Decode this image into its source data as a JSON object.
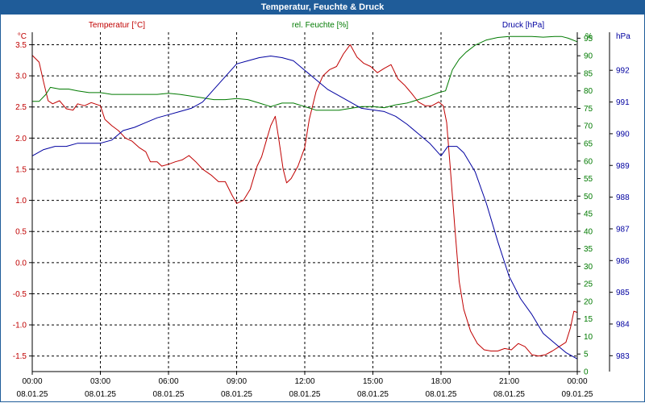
{
  "window": {
    "title": "Temperatur, Feuchte & Druck"
  },
  "chart_data": {
    "type": "line",
    "title": "Temperatur, Feuchte & Druck",
    "colors": {
      "temperature": "#c00000",
      "humidity": "#007a00",
      "pressure": "#0000a0",
      "grid": "#000000"
    },
    "x": {
      "range_hours": [
        0,
        24
      ],
      "ticks": [
        {
          "hour": 0,
          "time": "00:00",
          "date": "08.01.25"
        },
        {
          "hour": 3,
          "time": "03:00",
          "date": "08.01.25"
        },
        {
          "hour": 6,
          "time": "06:00",
          "date": "08.01.25"
        },
        {
          "hour": 9,
          "time": "09:00",
          "date": "08.01.25"
        },
        {
          "hour": 12,
          "time": "12:00",
          "date": "08.01.25"
        },
        {
          "hour": 15,
          "time": "15:00",
          "date": "08.01.25"
        },
        {
          "hour": 18,
          "time": "18:00",
          "date": "08.01.25"
        },
        {
          "hour": 21,
          "time": "21:00",
          "date": "08.01.25"
        },
        {
          "hour": 24,
          "time": "00:00",
          "date": "09.01.25"
        }
      ]
    },
    "axes": {
      "temperature": {
        "unit": "°C",
        "legend": "Temperatur [°C]",
        "range": [
          -1.75,
          3.7
        ],
        "ticks": [
          3.5,
          3.0,
          2.5,
          2.0,
          1.5,
          1.0,
          0.5,
          0.0,
          -0.5,
          -1.0,
          -1.5
        ],
        "tick_labels": [
          "3.5",
          "3.0",
          "2.5",
          "2.0",
          "1.5",
          "1.0",
          "0.5",
          "0.0",
          "-0.5",
          "-1.0",
          "-1.5"
        ]
      },
      "humidity": {
        "unit": "%",
        "legend": "rel. Feuchte [%]",
        "range": [
          0,
          96.7
        ],
        "ticks": [
          95,
          90,
          85,
          80,
          75,
          70,
          65,
          60,
          55,
          50,
          45,
          40,
          35,
          30,
          25,
          20,
          15,
          10,
          5,
          0
        ],
        "tick_labels": [
          "95",
          "90",
          "85",
          "80",
          "75",
          "70",
          "65",
          "60",
          "55",
          "50",
          "45",
          "40",
          "35",
          "30",
          "25",
          "20",
          "15",
          "10",
          "5",
          "0"
        ]
      },
      "pressure": {
        "unit": "hPa",
        "legend": "Druck [hPa]",
        "range": [
          982.5,
          993.2
        ],
        "ticks": [
          992,
          991,
          990,
          989,
          988,
          987,
          986,
          985,
          984,
          983
        ],
        "tick_labels": [
          "992",
          "991",
          "990",
          "989",
          "988",
          "987",
          "986",
          "985",
          "984",
          "983"
        ]
      }
    },
    "series": [
      {
        "name": "Temperatur [°C]",
        "axis": "temperature",
        "points": [
          [
            0,
            3.33
          ],
          [
            0.3,
            3.22
          ],
          [
            0.5,
            2.9
          ],
          [
            0.7,
            2.6
          ],
          [
            0.9,
            2.55
          ],
          [
            1.2,
            2.6
          ],
          [
            1.5,
            2.47
          ],
          [
            1.8,
            2.45
          ],
          [
            2.0,
            2.55
          ],
          [
            2.3,
            2.52
          ],
          [
            2.6,
            2.57
          ],
          [
            3.0,
            2.52
          ],
          [
            3.2,
            2.3
          ],
          [
            3.5,
            2.2
          ],
          [
            3.8,
            2.12
          ],
          [
            4.1,
            2.0
          ],
          [
            4.4,
            1.95
          ],
          [
            4.7,
            1.85
          ],
          [
            5.0,
            1.78
          ],
          [
            5.2,
            1.62
          ],
          [
            5.5,
            1.62
          ],
          [
            5.7,
            1.55
          ],
          [
            6.0,
            1.58
          ],
          [
            6.3,
            1.62
          ],
          [
            6.6,
            1.65
          ],
          [
            6.9,
            1.72
          ],
          [
            7.2,
            1.62
          ],
          [
            7.5,
            1.5
          ],
          [
            7.9,
            1.4
          ],
          [
            8.2,
            1.3
          ],
          [
            8.5,
            1.3
          ],
          [
            8.8,
            1.08
          ],
          [
            9.0,
            0.95
          ],
          [
            9.3,
            1.0
          ],
          [
            9.6,
            1.18
          ],
          [
            9.9,
            1.55
          ],
          [
            10.1,
            1.7
          ],
          [
            10.3,
            1.95
          ],
          [
            10.5,
            2.2
          ],
          [
            10.7,
            2.35
          ],
          [
            10.85,
            2.0
          ],
          [
            11.05,
            1.5
          ],
          [
            11.2,
            1.28
          ],
          [
            11.4,
            1.35
          ],
          [
            11.7,
            1.55
          ],
          [
            12.0,
            1.85
          ],
          [
            12.2,
            2.3
          ],
          [
            12.5,
            2.75
          ],
          [
            12.8,
            3.0
          ],
          [
            13.1,
            3.1
          ],
          [
            13.4,
            3.15
          ],
          [
            13.7,
            3.35
          ],
          [
            14.0,
            3.5
          ],
          [
            14.3,
            3.3
          ],
          [
            14.6,
            3.2
          ],
          [
            14.9,
            3.15
          ],
          [
            15.2,
            3.05
          ],
          [
            15.5,
            3.12
          ],
          [
            15.8,
            3.18
          ],
          [
            16.1,
            2.95
          ],
          [
            16.4,
            2.85
          ],
          [
            16.7,
            2.72
          ],
          [
            17.0,
            2.58
          ],
          [
            17.3,
            2.52
          ],
          [
            17.6,
            2.52
          ],
          [
            17.9,
            2.58
          ],
          [
            18.1,
            2.52
          ],
          [
            18.25,
            2.25
          ],
          [
            18.4,
            1.55
          ],
          [
            18.6,
            0.6
          ],
          [
            18.8,
            -0.3
          ],
          [
            19.0,
            -0.75
          ],
          [
            19.3,
            -1.1
          ],
          [
            19.6,
            -1.3
          ],
          [
            19.9,
            -1.4
          ],
          [
            20.2,
            -1.42
          ],
          [
            20.5,
            -1.42
          ],
          [
            20.8,
            -1.38
          ],
          [
            21.1,
            -1.4
          ],
          [
            21.4,
            -1.3
          ],
          [
            21.7,
            -1.35
          ],
          [
            22.0,
            -1.48
          ],
          [
            22.3,
            -1.5
          ],
          [
            22.6,
            -1.48
          ],
          [
            22.9,
            -1.42
          ],
          [
            23.2,
            -1.35
          ],
          [
            23.5,
            -1.28
          ],
          [
            23.7,
            -1.05
          ],
          [
            23.85,
            -0.78
          ],
          [
            24.0,
            -0.8
          ]
        ]
      },
      {
        "name": "rel. Feuchte [%]",
        "axis": "humidity",
        "points": [
          [
            0,
            77
          ],
          [
            0.3,
            77
          ],
          [
            0.6,
            79
          ],
          [
            0.8,
            81
          ],
          [
            1.2,
            80.5
          ],
          [
            1.6,
            80.5
          ],
          [
            2.0,
            80
          ],
          [
            2.5,
            79.5
          ],
          [
            3.0,
            79.5
          ],
          [
            3.5,
            79
          ],
          [
            4.0,
            79
          ],
          [
            4.5,
            79
          ],
          [
            5.0,
            79
          ],
          [
            5.5,
            79
          ],
          [
            6.0,
            79.3
          ],
          [
            6.5,
            79
          ],
          [
            7.0,
            78.5
          ],
          [
            7.5,
            78
          ],
          [
            8.0,
            77.5
          ],
          [
            8.5,
            77.5
          ],
          [
            9.0,
            77.8
          ],
          [
            9.5,
            77.5
          ],
          [
            10.0,
            76.5
          ],
          [
            10.5,
            75.5
          ],
          [
            11.0,
            76.5
          ],
          [
            11.5,
            76.5
          ],
          [
            12.0,
            75.5
          ],
          [
            12.5,
            74.5
          ],
          [
            13.0,
            74.5
          ],
          [
            13.5,
            74.5
          ],
          [
            14.0,
            75
          ],
          [
            14.5,
            75.5
          ],
          [
            15.0,
            75.5
          ],
          [
            15.5,
            75.2
          ],
          [
            16.0,
            76
          ],
          [
            16.5,
            76.5
          ],
          [
            17.0,
            77.5
          ],
          [
            17.5,
            78.5
          ],
          [
            17.9,
            79.5
          ],
          [
            18.2,
            80
          ],
          [
            18.5,
            86
          ],
          [
            18.8,
            89
          ],
          [
            19.1,
            91
          ],
          [
            19.5,
            93
          ],
          [
            20.0,
            94.5
          ],
          [
            20.5,
            95.2
          ],
          [
            21.0,
            95.5
          ],
          [
            21.5,
            95.5
          ],
          [
            22.0,
            95.5
          ],
          [
            22.5,
            95.3
          ],
          [
            23.0,
            95.5
          ],
          [
            23.3,
            95.5
          ],
          [
            23.6,
            95.0
          ],
          [
            24.0,
            94.0
          ]
        ]
      },
      {
        "name": "Druck [hPa]",
        "axis": "pressure",
        "points": [
          [
            0,
            989.3
          ],
          [
            0.5,
            989.5
          ],
          [
            1.0,
            989.6
          ],
          [
            1.5,
            989.6
          ],
          [
            2.0,
            989.7
          ],
          [
            2.5,
            989.7
          ],
          [
            3.0,
            989.7
          ],
          [
            3.5,
            989.8
          ],
          [
            4.0,
            990.1
          ],
          [
            4.5,
            990.2
          ],
          [
            5.0,
            990.35
          ],
          [
            5.5,
            990.5
          ],
          [
            6.0,
            990.6
          ],
          [
            6.5,
            990.7
          ],
          [
            7.0,
            990.8
          ],
          [
            7.5,
            991.0
          ],
          [
            8.0,
            991.4
          ],
          [
            8.5,
            991.8
          ],
          [
            9.0,
            992.2
          ],
          [
            9.5,
            992.3
          ],
          [
            10.0,
            992.4
          ],
          [
            10.5,
            992.45
          ],
          [
            11.0,
            992.4
          ],
          [
            11.5,
            992.3
          ],
          [
            12.0,
            992.0
          ],
          [
            12.5,
            991.7
          ],
          [
            13.0,
            991.4
          ],
          [
            13.5,
            991.2
          ],
          [
            14.0,
            991.0
          ],
          [
            14.5,
            990.8
          ],
          [
            15.0,
            990.75
          ],
          [
            15.5,
            990.7
          ],
          [
            16.0,
            990.55
          ],
          [
            16.5,
            990.3
          ],
          [
            17.0,
            990.0
          ],
          [
            17.5,
            989.7
          ],
          [
            18.0,
            989.3
          ],
          [
            18.3,
            989.6
          ],
          [
            18.7,
            989.6
          ],
          [
            19.0,
            989.4
          ],
          [
            19.5,
            988.8
          ],
          [
            20.0,
            987.8
          ],
          [
            20.5,
            986.6
          ],
          [
            21.0,
            985.5
          ],
          [
            21.5,
            984.8
          ],
          [
            22.0,
            984.3
          ],
          [
            22.5,
            983.7
          ],
          [
            23.0,
            983.4
          ],
          [
            23.5,
            983.1
          ],
          [
            24.0,
            982.9
          ]
        ]
      }
    ]
  }
}
